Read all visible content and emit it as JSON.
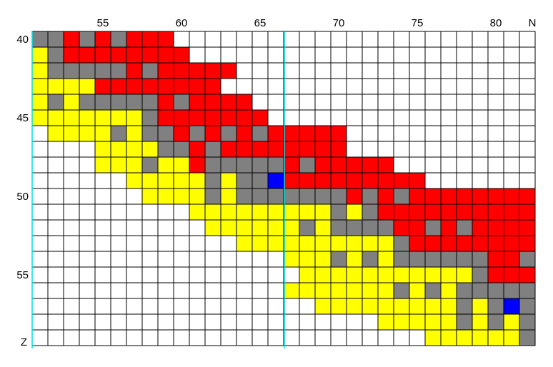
{
  "x_axis": {
    "label": "N",
    "ticks": [
      55,
      60,
      65,
      70,
      75,
      80
    ]
  },
  "y_axis": {
    "label": "Z",
    "ticks": [
      40,
      45,
      50,
      55
    ]
  }
}
